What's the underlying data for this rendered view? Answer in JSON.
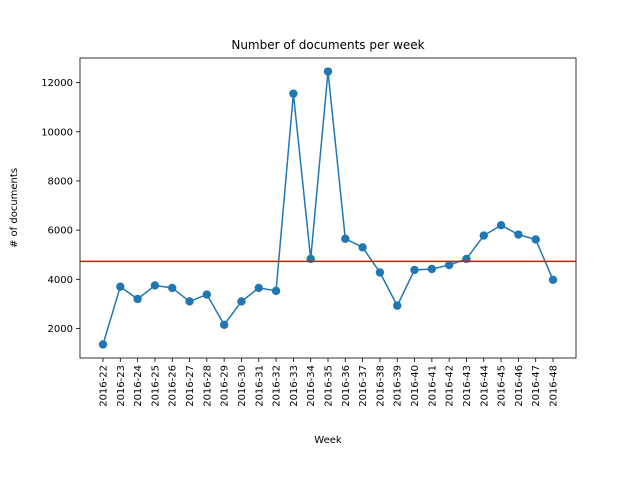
{
  "chart_data": {
    "type": "line",
    "title": "Number of documents per week",
    "xlabel": "Week",
    "ylabel": "# of documents",
    "grid": false,
    "ylim": [
      800,
      13000
    ],
    "yticks": [
      2000,
      4000,
      6000,
      8000,
      10000,
      12000
    ],
    "yticklabels": [
      "2000",
      "4000",
      "6000",
      "8000",
      "10000",
      "12000"
    ],
    "categories": [
      "2016-22",
      "2016-23",
      "2016-24",
      "2016-25",
      "2016-26",
      "2016-27",
      "2016-28",
      "2016-29",
      "2016-30",
      "2016-31",
      "2016-32",
      "2016-33",
      "2016-34",
      "2016-35",
      "2016-36",
      "2016-37",
      "2016-38",
      "2016-39",
      "2016-40",
      "2016-41",
      "2016-42",
      "2016-43",
      "2016-44",
      "2016-45",
      "2016-46",
      "2016-47",
      "2016-48"
    ],
    "series": [
      {
        "color": "#1f77b4",
        "marker": "circle",
        "values": [
          1350,
          3700,
          3200,
          3750,
          3650,
          3100,
          3380,
          2150,
          3100,
          3650,
          3530,
          11550,
          4830,
          12450,
          5650,
          5300,
          4280,
          2930,
          4380,
          4420,
          4580,
          4830,
          5780,
          6200,
          5820,
          5620,
          3980
        ]
      }
    ],
    "reference_line": {
      "value": 4730,
      "color": "#ff0000"
    }
  }
}
